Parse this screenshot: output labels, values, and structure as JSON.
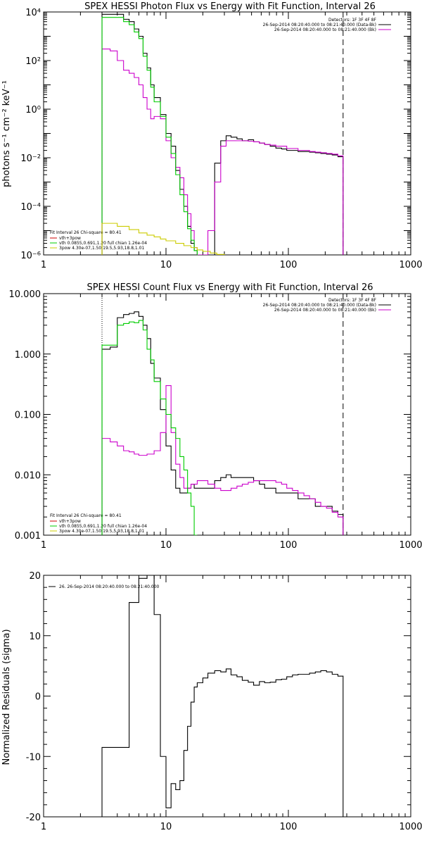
{
  "colors": {
    "data": "#000000",
    "total": "#cc00cc",
    "thermal": "#00cc00",
    "nonthermal": "#cccc00",
    "sum": "#cc0000",
    "background": "#ffffff"
  },
  "chart_data": [
    {
      "type": "line",
      "title": "SPEX HESSI Photon Flux vs Energy with Fit Function, Interval 26",
      "ylabel": "photons s⁻¹ cm⁻² keV⁻¹",
      "xlabel": "",
      "xscale": "log",
      "yscale": "log",
      "xlim": [
        1,
        1000
      ],
      "ylim": [
        1e-06,
        10000.0
      ],
      "xticks": [
        "1",
        "10",
        "100",
        "1000"
      ],
      "yticks": [
        "10⁻⁶",
        "10⁻⁴",
        "10⁻²",
        "10⁰",
        "10²",
        "10⁴"
      ],
      "legend_top_right": [
        "Detectors: 1F 3F 4F 8F",
        "26-Sep-2014 08:20:40.000 to 08:21:40.000 (Data-Bk)",
        "26-Sep-2014 08:20:40.000 to 08:21:40.000 (Bk)"
      ],
      "legend_bottom_left": [
        "Fit Interval 26    Chi-square = 80.41",
        "vth+3pow",
        "vth 0.0855,0.691,1.20  full chian 1.26e-04",
        "3pow 4.30e-07,1.50,19.5,5.93,18.8,1.01"
      ],
      "vlines": [
        3,
        280
      ],
      "series": [
        {
          "name": "Data-Bk",
          "color": "#000000",
          "x": [
            3,
            3.5,
            4,
            4.5,
            5,
            5.5,
            6,
            6.5,
            7,
            7.5,
            8,
            9,
            10,
            11,
            12,
            13,
            14,
            15,
            16,
            17,
            18,
            20,
            22,
            25,
            28,
            31,
            34,
            38,
            42,
            47,
            52,
            58,
            64,
            71,
            79,
            88,
            97,
            108,
            120,
            134,
            149,
            166,
            184,
            205,
            228,
            254,
            280
          ],
          "y": [
            8000,
            8000,
            8000,
            5000,
            4000,
            2000,
            1000,
            200,
            50,
            10,
            3,
            0.6,
            0.1,
            0.03,
            0.003,
            0.0005,
            0.0001,
            1.5e-05,
            3e-06,
            1.5e-06,
            1e-06,
            1e-06,
            1e-06,
            0.006,
            0.05,
            0.08,
            0.07,
            0.06,
            0.05,
            0.055,
            0.045,
            0.04,
            0.035,
            0.03,
            0.025,
            0.023,
            0.02,
            0.02,
            0.018,
            0.018,
            0.017,
            0.016,
            0.015,
            0.014,
            0.013,
            0.011,
            0.011
          ]
        },
        {
          "name": "vth+3pow",
          "color": "#cc00cc",
          "x": [
            3,
            3.5,
            4,
            4.5,
            5,
            5.5,
            6,
            6.5,
            7,
            7.5,
            8,
            9,
            10,
            11,
            12,
            13,
            14,
            15,
            16,
            17,
            18,
            20,
            22,
            25,
            28,
            31,
            34,
            38,
            42,
            47,
            52,
            58,
            64,
            71,
            79,
            88,
            97,
            108,
            120,
            134,
            149,
            166,
            184,
            205,
            228,
            254,
            280
          ],
          "y": [
            300,
            250,
            100,
            40,
            30,
            20,
            10,
            3,
            1,
            0.4,
            0.5,
            0.4,
            0.05,
            0.01,
            0.004,
            0.0015,
            0.0003,
            5e-05,
            1e-05,
            2e-06,
            1e-06,
            1e-06,
            1e-05,
            0.001,
            0.03,
            0.05,
            0.05,
            0.05,
            0.05,
            0.048,
            0.045,
            0.04,
            0.035,
            0.033,
            0.03,
            0.03,
            0.024,
            0.024,
            0.02,
            0.02,
            0.018,
            0.017,
            0.016,
            0.015,
            0.014,
            0.012,
            0.012
          ]
        },
        {
          "name": "vth",
          "color": "#00cc00",
          "x": [
            3,
            3.5,
            4,
            4.5,
            5,
            5.5,
            6,
            6.5,
            7,
            7.5,
            8,
            9,
            10,
            11,
            12,
            13,
            14,
            15,
            16,
            17,
            18
          ],
          "y": [
            6000,
            6000,
            6000,
            4000,
            3000,
            1500,
            800,
            150,
            40,
            8,
            2,
            0.5,
            0.07,
            0.015,
            0.002,
            0.0003,
            6e-05,
            1.2e-05,
            4e-06,
            1.5e-06,
            1e-06
          ]
        },
        {
          "name": "3pow",
          "color": "#cccc00",
          "x": [
            3,
            4,
            5,
            6,
            7,
            8,
            9,
            10,
            12,
            14,
            16,
            18,
            20,
            23,
            26,
            30
          ],
          "y": [
            2e-05,
            1.5e-05,
            1.1e-05,
            8e-06,
            6.5e-06,
            5.5e-06,
            4.5e-06,
            3.8e-06,
            3e-06,
            2.4e-06,
            2e-06,
            1.6e-06,
            1.4e-06,
            1.2e-06,
            1.05e-06,
            1e-06
          ]
        }
      ]
    },
    {
      "type": "line",
      "title": "SPEX HESSI Count Flux vs Energy with Fit Function, Interval 26",
      "ylabel": "",
      "xlabel": "",
      "xscale": "log",
      "yscale": "log",
      "xlim": [
        1,
        1000
      ],
      "ylim": [
        0.001,
        10
      ],
      "xticks": [
        "1",
        "10",
        "100",
        "1000"
      ],
      "yticks": [
        "0.001",
        "0.010",
        "0.100",
        "1.000",
        "10.000"
      ],
      "legend_top_right": [
        "Detectors: 1F 3F 4F 8F",
        "26-Sep-2014 08:20:40.000 to 08:21:40.000 (Data-Bk)",
        "26-Sep-2014 08:20:40.000 to 08:21:40.000 (Bk)"
      ],
      "legend_bottom_left": [
        "Fit Interval 26    Chi-square = 80.41",
        "vth+3pow",
        "vth 0.0855,0.691,1.20  full chian 1.26e-04",
        "3pow 4.30e-07,1.50,19.5,5.93,18.8,1.01"
      ],
      "vlines": [
        3,
        280
      ],
      "series": [
        {
          "name": "Data-Bk",
          "color": "#000000",
          "x": [
            3,
            3.5,
            4,
            4.5,
            5,
            5.5,
            6,
            6.5,
            7,
            7.5,
            8,
            9,
            10,
            11,
            12,
            13,
            14,
            15,
            16,
            17,
            18,
            20,
            22,
            25,
            28,
            31,
            34,
            38,
            42,
            47,
            52,
            58,
            64,
            71,
            79,
            88,
            97,
            108,
            120,
            134,
            149,
            166,
            184,
            205,
            228,
            254,
            280
          ],
          "y": [
            1.2,
            1.3,
            4,
            4.5,
            4.7,
            5,
            4.2,
            3,
            1.8,
            0.7,
            0.4,
            0.12,
            0.03,
            0.012,
            0.006,
            0.005,
            0.005,
            0.006,
            0.007,
            0.006,
            0.006,
            0.006,
            0.006,
            0.008,
            0.009,
            0.01,
            0.009,
            0.009,
            0.009,
            0.009,
            0.008,
            0.007,
            0.006,
            0.006,
            0.005,
            0.005,
            0.005,
            0.005,
            0.004,
            0.004,
            0.004,
            0.003,
            0.003,
            0.003,
            0.0025,
            0.0022,
            0.0018
          ]
        },
        {
          "name": "vth+3pow",
          "color": "#cc00cc",
          "x": [
            3,
            3.5,
            4,
            4.5,
            5,
            5.5,
            6,
            6.5,
            7,
            7.5,
            8,
            9,
            10,
            11,
            12,
            13,
            14,
            15,
            16,
            17,
            18,
            20,
            22,
            25,
            28,
            31,
            34,
            38,
            42,
            47,
            52,
            58,
            64,
            71,
            79,
            88,
            97,
            108,
            120,
            134,
            149,
            166,
            184,
            205,
            228,
            254,
            280
          ],
          "y": [
            0.04,
            0.035,
            0.03,
            0.025,
            0.024,
            0.022,
            0.021,
            0.021,
            0.022,
            0.022,
            0.025,
            0.05,
            0.3,
            0.05,
            0.015,
            0.009,
            0.006,
            0.006,
            0.007,
            0.007,
            0.008,
            0.008,
            0.007,
            0.006,
            0.0055,
            0.0055,
            0.006,
            0.0065,
            0.007,
            0.0075,
            0.008,
            0.008,
            0.008,
            0.008,
            0.0075,
            0.007,
            0.006,
            0.0055,
            0.005,
            0.0045,
            0.004,
            0.0035,
            0.003,
            0.0028,
            0.0024,
            0.002,
            0.0017
          ]
        },
        {
          "name": "vth",
          "color": "#00cc00",
          "x": [
            3,
            3.5,
            4,
            4.5,
            5,
            5.5,
            6,
            6.5,
            7,
            7.5,
            8,
            9,
            10,
            11,
            12,
            13,
            14,
            15,
            16,
            17,
            18
          ],
          "y": [
            1.4,
            1.4,
            3,
            3.2,
            3.4,
            3.3,
            3.6,
            2.5,
            1.2,
            0.8,
            0.35,
            0.18,
            0.1,
            0.06,
            0.04,
            0.02,
            0.012,
            0.005,
            0.003,
            0.001,
            0.001
          ]
        }
      ]
    },
    {
      "type": "line",
      "title": "",
      "ylabel": "Normalized Residuals (sigma)",
      "xlabel": "",
      "xscale": "log",
      "yscale": "linear",
      "xlim": [
        1,
        1000
      ],
      "ylim": [
        -20,
        20
      ],
      "xticks": [
        "1",
        "10",
        "100",
        "1000"
      ],
      "yticks": [
        "-20",
        "-10",
        "0",
        "10",
        "20"
      ],
      "legend": "26. 26-Sep-2014 08:20:40.000 to 08:21:40.000",
      "series": [
        {
          "name": "26. 26-Sep-2014 08:20:40.000 to 08:21:40.000",
          "color": "#000000",
          "x": [
            3,
            4,
            5,
            6,
            7,
            8,
            9,
            10,
            11,
            12,
            13,
            14,
            15,
            16,
            17,
            18,
            20,
            22,
            25,
            28,
            31,
            34,
            38,
            42,
            47,
            52,
            58,
            64,
            71,
            79,
            88,
            97,
            108,
            120,
            134,
            149,
            166,
            184,
            205,
            228,
            254,
            280
          ],
          "y": [
            -8.5,
            -8.5,
            15.5,
            19.5,
            20,
            13.5,
            -10,
            -18.5,
            -14.5,
            -15.5,
            -14,
            -9,
            -5,
            -1,
            1.5,
            2.2,
            3,
            3.8,
            4.2,
            4,
            4.5,
            3.5,
            3.2,
            2.6,
            2.3,
            1.8,
            2.4,
            2.2,
            2.3,
            2.7,
            2.8,
            3.2,
            3.5,
            3.6,
            3.6,
            3.8,
            4,
            4.2,
            4,
            3.6,
            3.3,
            -20
          ]
        }
      ]
    }
  ]
}
